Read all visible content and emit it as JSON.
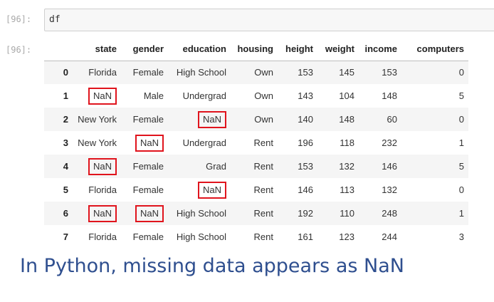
{
  "notebook": {
    "in_prompt": "[96]:",
    "out_prompt": "[96]:",
    "code": "df"
  },
  "table": {
    "columns": [
      "state",
      "gender",
      "education",
      "housing",
      "height",
      "weight",
      "income",
      "computers"
    ],
    "rows": [
      {
        "index": "0",
        "cells": [
          "Florida",
          "Female",
          "High School",
          "Own",
          "153",
          "145",
          "153",
          "0"
        ],
        "nan_marked": [
          false,
          false,
          false,
          false,
          false,
          false,
          false,
          false
        ]
      },
      {
        "index": "1",
        "cells": [
          "NaN",
          "Male",
          "Undergrad",
          "Own",
          "143",
          "104",
          "148",
          "5"
        ],
        "nan_marked": [
          true,
          false,
          false,
          false,
          false,
          false,
          false,
          false
        ]
      },
      {
        "index": "2",
        "cells": [
          "New York",
          "Female",
          "NaN",
          "Own",
          "140",
          "148",
          "60",
          "0"
        ],
        "nan_marked": [
          false,
          false,
          true,
          false,
          false,
          false,
          false,
          false
        ]
      },
      {
        "index": "3",
        "cells": [
          "New York",
          "NaN",
          "Undergrad",
          "Rent",
          "196",
          "118",
          "232",
          "1"
        ],
        "nan_marked": [
          false,
          true,
          false,
          false,
          false,
          false,
          false,
          false
        ]
      },
      {
        "index": "4",
        "cells": [
          "NaN",
          "Female",
          "Grad",
          "Rent",
          "153",
          "132",
          "146",
          "5"
        ],
        "nan_marked": [
          true,
          false,
          false,
          false,
          false,
          false,
          false,
          false
        ]
      },
      {
        "index": "5",
        "cells": [
          "Florida",
          "Female",
          "NaN",
          "Rent",
          "146",
          "113",
          "132",
          "0"
        ],
        "nan_marked": [
          false,
          false,
          true,
          false,
          false,
          false,
          false,
          false
        ]
      },
      {
        "index": "6",
        "cells": [
          "NaN",
          "NaN",
          "High School",
          "Rent",
          "192",
          "110",
          "248",
          "1"
        ],
        "nan_marked": [
          true,
          true,
          false,
          false,
          false,
          false,
          false,
          false
        ]
      },
      {
        "index": "7",
        "cells": [
          "Florida",
          "Female",
          "High School",
          "Rent",
          "161",
          "123",
          "244",
          "3"
        ],
        "nan_marked": [
          false,
          false,
          false,
          false,
          false,
          false,
          false,
          false
        ]
      }
    ]
  },
  "caption": "In Python, missing data appears as NaN",
  "colors": {
    "highlight_border": "#e0141d",
    "caption_text": "#2f4f8f",
    "stripe": "#f5f5f5"
  }
}
